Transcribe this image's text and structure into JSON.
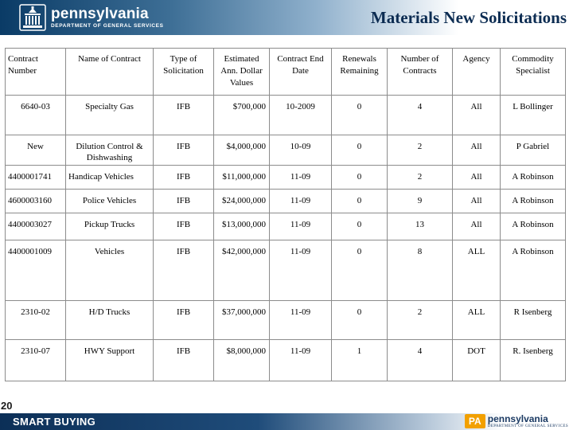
{
  "header": {
    "logo_title": "pennsylvania",
    "logo_subtitle": "DEPARTMENT OF GENERAL SERVICES",
    "page_title": "Materials New Solicitations"
  },
  "table": {
    "columns": [
      "Contract Number",
      "Name of Contract",
      "Type of Solicitation",
      "Estimated Ann. Dollar Values",
      "Contract End Date",
      "Renewals Remaining",
      "Number of Contracts",
      "Agency",
      "Commodity Specialist"
    ],
    "rows": [
      [
        "6640-03",
        "Specialty Gas",
        "IFB",
        "$700,000",
        "10-2009",
        "0",
        "4",
        "All",
        "L Bollinger"
      ],
      [
        "New",
        "Dilution Control & Dishwashing",
        "IFB",
        "$4,000,000",
        "10-09",
        "0",
        "2",
        "All",
        "P Gabriel"
      ],
      [
        "4400001741",
        "Handicap Vehicles",
        "IFB",
        "$11,000,000",
        "11-09",
        "0",
        "2",
        "All",
        "A Robinson"
      ],
      [
        "4600003160",
        "Police Vehicles",
        "IFB",
        "$24,000,000",
        "11-09",
        "0",
        "9",
        "All",
        "A Robinson"
      ],
      [
        "4400003027",
        "Pickup Trucks",
        "IFB",
        "$13,000,000",
        "11-09",
        "0",
        "13",
        "All",
        "A Robinson"
      ],
      [
        "4400001009",
        "Vehicles",
        "IFB",
        "$42,000,000",
        "11-09",
        "0",
        "8",
        "ALL",
        "A Robinson"
      ],
      [
        "2310-02",
        "H/D Trucks",
        "IFB",
        "$37,000,000",
        "11-09",
        "0",
        "2",
        "ALL",
        "R Isenberg"
      ],
      [
        "2310-07",
        "HWY Support",
        "IFB",
        "$8,000,000",
        "11-09",
        "1",
        "4",
        "DOT",
        "R. Isenberg"
      ]
    ]
  },
  "slide_number": "20",
  "footer": {
    "label": "SMART BUYING",
    "logo_mark": "PA",
    "logo_brand": "pennsylvania",
    "logo_subtitle": "DEPARTMENT OF GENERAL SERVICES"
  }
}
